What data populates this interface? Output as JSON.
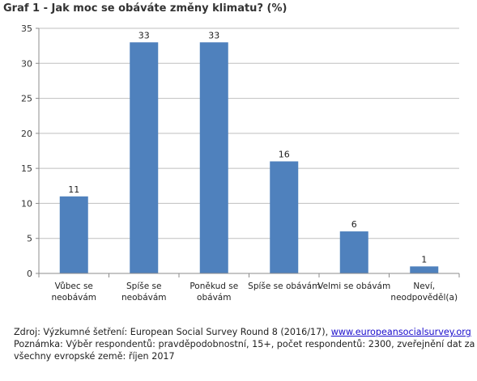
{
  "chart_data": {
    "type": "bar",
    "title": "Graf 1 - Jak moc se obáváte změny klimatu? (%)",
    "categories": [
      [
        "Vůbec se",
        "neobávám"
      ],
      [
        "Spíše se",
        "neobávám"
      ],
      [
        "Poněkud se",
        "obávám"
      ],
      [
        "Spíše se obávám"
      ],
      [
        "Velmi se obávám"
      ],
      [
        "Neví,",
        "neodpověděl(a)"
      ]
    ],
    "values": [
      11,
      33,
      33,
      16,
      6,
      1
    ],
    "ylim": [
      0,
      35
    ],
    "yticks": [
      0,
      5,
      10,
      15,
      20,
      25,
      30,
      35
    ],
    "grid": true,
    "bar_color": "#4f81bd",
    "grid_color": "#bfbfbf",
    "xlabel": "",
    "ylabel": ""
  },
  "notes": {
    "source_prefix": "Zdroj: Výzkumné šetření: European Social Survey Round 8 (2016/17), ",
    "source_link": "www.europeansocialsurvey.org",
    "note_line1": "Poznámka: Výběr respondentů: pravděpodobnostní, 15+, počet respondentů: 2300, zveřejnění dat za",
    "note_line2": "všechny evropské země: říjen 2017"
  }
}
